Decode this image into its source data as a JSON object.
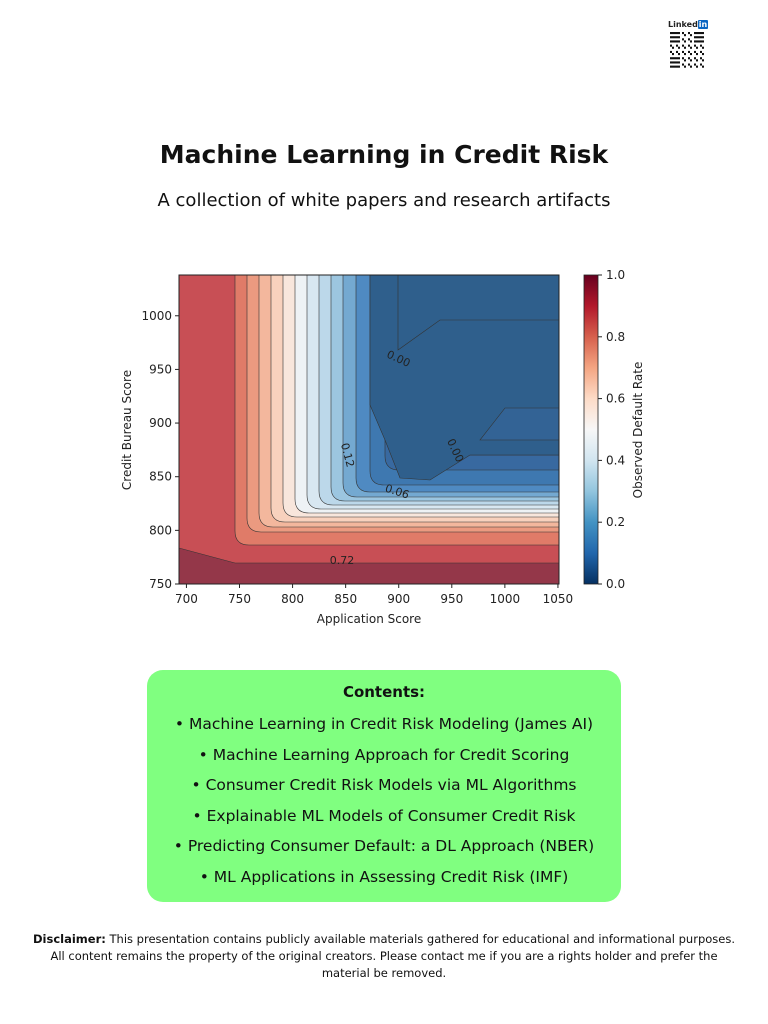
{
  "header": {
    "title": "Machine Learning in Credit Risk",
    "subtitle": "A collection of white papers and research artifacts"
  },
  "linkedin": {
    "label": "Linked",
    "badge": "in"
  },
  "chart_data": {
    "type": "contour",
    "xlabel": "Application Score",
    "ylabel": "Credit Bureau Score",
    "colorbar_label": "Observed Default Rate",
    "xlim": [
      693,
      1051
    ],
    "ylim": [
      750,
      1038
    ],
    "xticks": [
      700,
      750,
      800,
      850,
      900,
      950,
      1000,
      1050
    ],
    "yticks": [
      750,
      800,
      850,
      900,
      950,
      1000
    ],
    "clim": [
      0,
      1
    ],
    "cticks": [
      {
        "value": 0,
        "label": "0.0"
      },
      {
        "value": 0.2,
        "label": "0.2"
      },
      {
        "value": 0.4,
        "label": "0.4"
      },
      {
        "value": 0.6,
        "label": "0.6"
      },
      {
        "value": 0.8,
        "label": "0.8"
      },
      {
        "value": 1,
        "label": "1.0"
      }
    ],
    "contour_labels": [
      {
        "value": 0,
        "label": "0.00"
      },
      {
        "value": 0,
        "label": "0.00"
      },
      {
        "value": 0.12,
        "label": "0.12"
      },
      {
        "value": 0.06,
        "label": "0.06"
      },
      {
        "value": 0.72,
        "label": "0.72"
      }
    ]
  },
  "contents": {
    "title": "Contents:",
    "items": [
      "• Machine Learning in Credit Risk Modeling (James AI)",
      "• Machine Learning Approach for Credit Scoring",
      "• Consumer Credit Risk Models via ML Algorithms",
      "• Explainable ML Models of Consumer Credit Risk",
      "• Predicting Consumer Default: a DL Approach (NBER)",
      "• ML Applications in Assessing Credit Risk (IMF)"
    ]
  },
  "disclaimer": {
    "label": "Disclaimer:",
    "text": "This presentation contains publicly available materials gathered for educational and informational purposes. All content remains the property of the original creators. Please contact me if you are a rights holder and prefer the material be removed."
  }
}
